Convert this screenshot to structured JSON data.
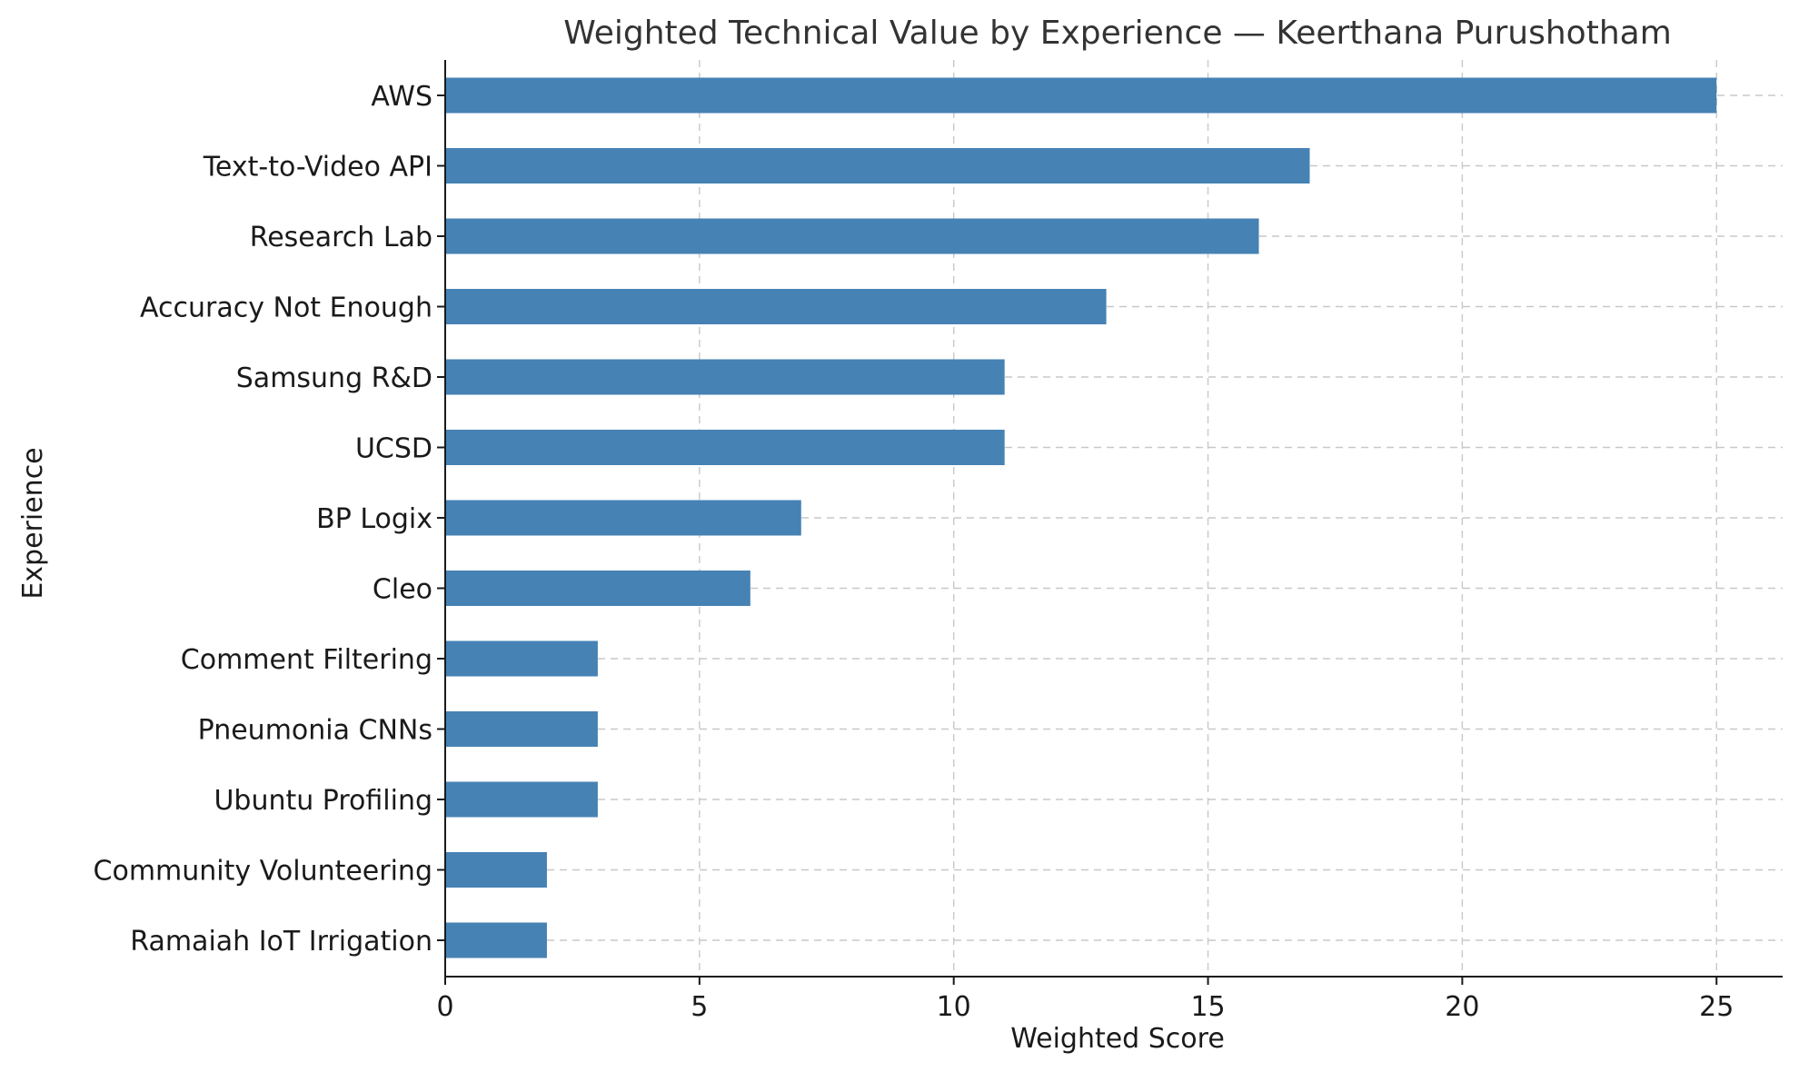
{
  "chart_data": {
    "type": "bar",
    "orientation": "horizontal",
    "title": "Weighted Technical Value by Experience — Keerthana Purushotham",
    "xlabel": "Weighted Score",
    "ylabel": "Experience",
    "categories": [
      "AWS",
      "Text-to-Video API",
      "Research Lab",
      "Accuracy Not Enough",
      "Samsung R&D",
      "UCSD",
      "BP Logix",
      "Cleo",
      "Comment Filtering",
      "Pneumonia CNNs",
      "Ubuntu Profiling",
      "Community Volunteering",
      "Ramaiah IoT Irrigation"
    ],
    "values": [
      25,
      17,
      16,
      13,
      11,
      11,
      7,
      6,
      3,
      3,
      3,
      2,
      2
    ],
    "xlim": [
      0,
      26.3
    ],
    "xticks": [
      0,
      5,
      10,
      15,
      20,
      25
    ],
    "grid": true,
    "bar_color": "#4682b4"
  }
}
